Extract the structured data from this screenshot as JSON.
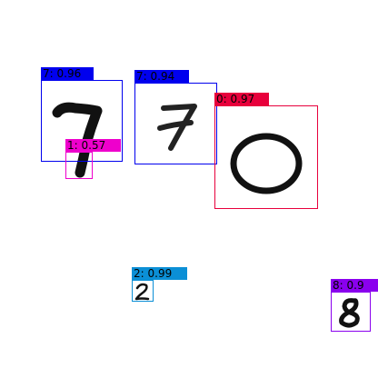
{
  "detections": [
    {
      "label": "7: 0.96",
      "color": "#0000ee"
    },
    {
      "label": "7: 0.94",
      "color": "#0000ee"
    },
    {
      "label": "0: 0.97",
      "color": "#e8003c"
    },
    {
      "label": "1: 0.57",
      "color": "#ee00cc"
    },
    {
      "label": "2: 0.99",
      "color": "#0b8fd6"
    },
    {
      "label": "8: 0.9",
      "color": "#8a00ee"
    }
  ]
}
